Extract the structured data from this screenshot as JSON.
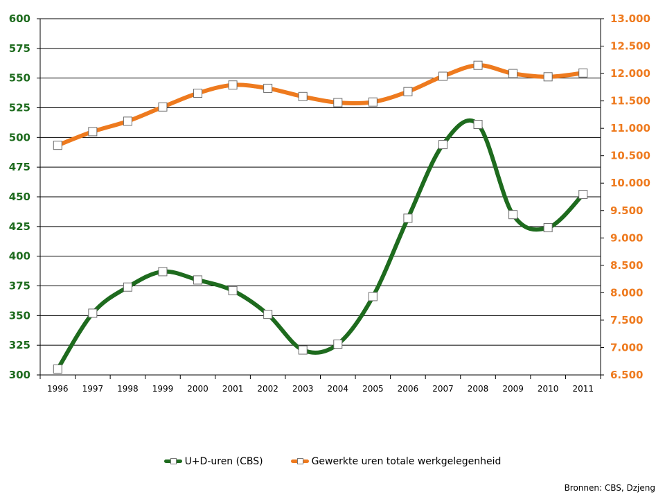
{
  "chart_data": {
    "type": "line",
    "x": [
      "1996",
      "1997",
      "1998",
      "1999",
      "2000",
      "2001",
      "2002",
      "2003",
      "2004",
      "2005",
      "2006",
      "2007",
      "2008",
      "2009",
      "2010",
      "2011"
    ],
    "series": [
      {
        "name": "U+D-uren (CBS)",
        "axis": "left",
        "color": "#1e6b1e",
        "values": [
          305,
          352,
          374,
          387,
          380,
          371,
          351,
          321,
          326,
          366,
          432,
          494,
          511,
          435,
          424,
          452
        ]
      },
      {
        "name": "Gewerkte uren totale werkgelegenheid",
        "axis": "right",
        "color": "#ee7a1e",
        "values": [
          10690,
          10940,
          11130,
          11390,
          11640,
          11790,
          11730,
          11580,
          11470,
          11480,
          11670,
          11950,
          12150,
          12000,
          11940,
          12010
        ]
      }
    ],
    "y_left": {
      "range": [
        300,
        600
      ],
      "ticks": [
        "300",
        "325",
        "350",
        "375",
        "400",
        "425",
        "450",
        "475",
        "500",
        "525",
        "550",
        "575",
        "600"
      ],
      "color": "#1e6b1e"
    },
    "y_right": {
      "range": [
        6500,
        13000
      ],
      "ticks": [
        "6.500",
        "7.000",
        "7.500",
        "8.000",
        "8.500",
        "9.000",
        "9.500",
        "10.000",
        "10.500",
        "11.000",
        "11.500",
        "12.000",
        "12.500",
        "13.000"
      ],
      "color": "#ee7a1e"
    },
    "grid": true,
    "legend_position": "bottom",
    "source": "Bronnen: CBS, Dzjeng"
  }
}
